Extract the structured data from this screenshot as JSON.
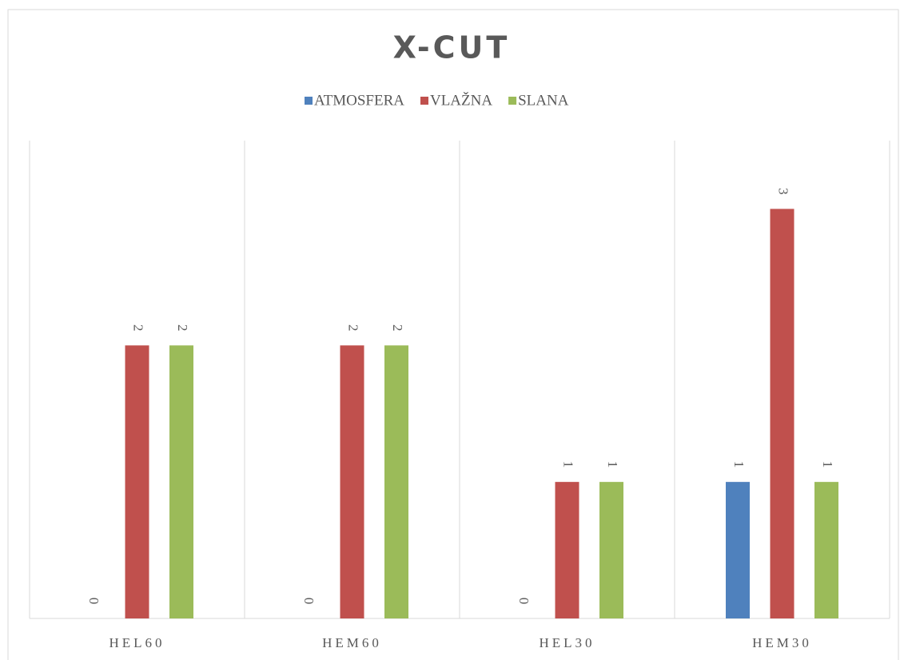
{
  "chart_data": {
    "type": "bar",
    "title": "X-CUT",
    "categories": [
      "HEL60",
      "HEM60",
      "HEL30",
      "HEM30"
    ],
    "series": [
      {
        "name": "ATMOSFERA",
        "color": "#4f81bd",
        "values": [
          0,
          0,
          0,
          1
        ]
      },
      {
        "name": "VLAŽNA",
        "color": "#c0504d",
        "values": [
          2,
          2,
          1,
          3
        ]
      },
      {
        "name": "SLANA",
        "color": "#9bbb59",
        "values": [
          2,
          2,
          1,
          1
        ]
      }
    ],
    "ylim": [
      0,
      3.5
    ],
    "legend": "top"
  }
}
